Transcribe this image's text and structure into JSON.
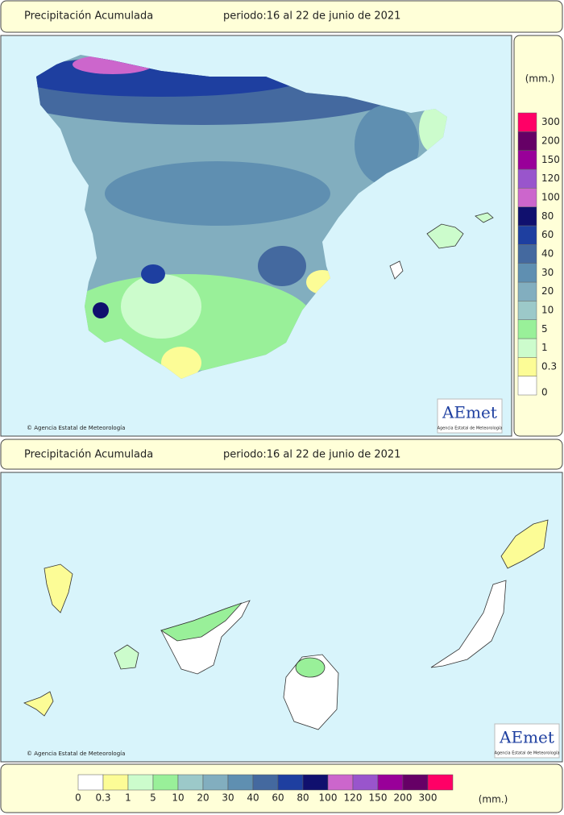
{
  "header": {
    "title": "Precipitación Acumulada",
    "period": "periodo:16 al 22 de junio de 2021"
  },
  "canarias_header": {
    "title": "Precipitación Acumulada",
    "period": "periodo:16 al 22 de junio de 2021"
  },
  "credit": "© Agencia Estatal de Meteorología",
  "logo": {
    "name": "AEmet",
    "subtitle": "Agencia Estatal de Meteorología"
  },
  "legend": {
    "unit": "(mm.)",
    "labels": [
      "0",
      "0.3",
      "1",
      "5",
      "10",
      "20",
      "30",
      "40",
      "60",
      "80",
      "100",
      "120",
      "150",
      "200",
      "300"
    ],
    "colors": [
      "#ffffff",
      "#fcfc96",
      "#ccfccc",
      "#99f099",
      "#9cc9c9",
      "#82aebf",
      "#5f8fb1",
      "#44699f",
      "#1e3fa0",
      "#10106e",
      "#cc66cc",
      "#9955cc",
      "#990099",
      "#660066",
      "#ff0066"
    ]
  }
}
